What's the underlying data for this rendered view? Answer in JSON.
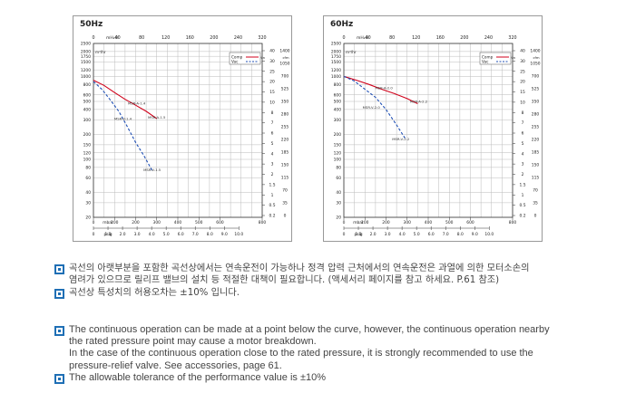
{
  "chart_data": [
    {
      "type": "line",
      "title": "50Hz",
      "top_axis_label": "mH₂O",
      "top_axis_ticks": [
        "0",
        "40",
        "80",
        "120",
        "160",
        "200",
        "240",
        "320"
      ],
      "bottom_axis1_label": "mbar",
      "bottom_axis1_ticks": [
        "0",
        "100",
        "200",
        "300",
        "400",
        "500",
        "600",
        "800"
      ],
      "bottom_axis2_label": "psig",
      "bottom_axis2_ticks": [
        "0",
        "1.0",
        "2.0",
        "3.0",
        "4.0",
        "5.0",
        "6.0",
        "7.0",
        "8.0",
        "9.0",
        "10.0"
      ],
      "left_axis_label": "m³/hr",
      "left_axis_ticks": [
        "2500",
        "2000",
        "1750",
        "1500",
        "1200",
        "1000",
        "800",
        "600",
        "500",
        "400",
        "300",
        "200",
        "150",
        "120",
        "100",
        "80",
        "60",
        "40",
        "30",
        "20"
      ],
      "right_axis1_label": "m³/min",
      "right_axis1_ticks": [
        "40",
        "30",
        "25",
        "20",
        "15",
        "10",
        "8",
        "7",
        "6",
        "5",
        "4",
        "3",
        "2",
        "1.5",
        "1",
        "0.5",
        "0.2"
      ],
      "right_axis2_label": "cfm",
      "right_axis2_ticks": [
        "1400",
        "1050",
        "700",
        "525",
        "350",
        "280",
        "255",
        "220",
        "185",
        "150",
        "115",
        "70",
        "35",
        "0"
      ],
      "legend": {
        "position": "top-right",
        "entries": [
          "Comp",
          "Vac"
        ]
      },
      "series": [
        {
          "name": "Comp",
          "style": "solid",
          "color": "#d0021b",
          "x": [
            0,
            50,
            100,
            150,
            200,
            250,
            300
          ],
          "y": [
            900,
            780,
            640,
            530,
            450,
            380,
            310
          ],
          "labels": [
            {
              "x": 205,
              "y": 460,
              "text": "MSR-A-1.4"
            },
            {
              "x": 300,
              "y": 310,
              "text": "MSR-A-1.5"
            }
          ]
        },
        {
          "name": "Vac",
          "style": "dashed",
          "color": "#1f4fb5",
          "x": [
            0,
            40,
            80,
            120,
            160,
            200,
            240,
            280
          ],
          "y": [
            870,
            700,
            520,
            380,
            250,
            160,
            110,
            72
          ],
          "labels": [
            {
              "x": 140,
              "y": 300,
              "text": "MSR-V-1.4"
            },
            {
              "x": 278,
              "y": 72,
              "text": "MSR-V-1.5"
            }
          ]
        }
      ],
      "grid": true
    },
    {
      "type": "line",
      "title": "60Hz",
      "top_axis_label": "mH₂O",
      "top_axis_ticks": [
        "0",
        "40",
        "80",
        "120",
        "160",
        "200",
        "240",
        "320"
      ],
      "bottom_axis1_label": "mbar",
      "bottom_axis1_ticks": [
        "0",
        "100",
        "200",
        "300",
        "400",
        "500",
        "600",
        "800"
      ],
      "bottom_axis2_label": "psig",
      "bottom_axis2_ticks": [
        "0",
        "1.0",
        "2.0",
        "3.0",
        "4.0",
        "5.0",
        "6.0",
        "7.0",
        "8.0",
        "9.0",
        "10.0"
      ],
      "left_axis_label": "m³/hr",
      "left_axis_ticks": [
        "2500",
        "2000",
        "1750",
        "1500",
        "1200",
        "1000",
        "800",
        "600",
        "500",
        "400",
        "300",
        "200",
        "150",
        "120",
        "100",
        "80",
        "60",
        "40",
        "30",
        "20"
      ],
      "right_axis1_label": "m³/min",
      "right_axis1_ticks": [
        "40",
        "30",
        "25",
        "20",
        "15",
        "10",
        "8",
        "7",
        "6",
        "5",
        "4",
        "3",
        "2",
        "1.5",
        "1",
        "0.5",
        "0.2"
      ],
      "right_axis2_label": "cfm",
      "right_axis2_ticks": [
        "1400",
        "1050",
        "700",
        "525",
        "350",
        "280",
        "255",
        "220",
        "185",
        "150",
        "115",
        "70",
        "35",
        "0"
      ],
      "legend": {
        "position": "top-right",
        "entries": [
          "Comp",
          "Vac"
        ]
      },
      "series": [
        {
          "name": "Comp",
          "style": "solid",
          "color": "#d0021b",
          "x": [
            0,
            60,
            120,
            180,
            240,
            300,
            350
          ],
          "y": [
            1000,
            900,
            800,
            700,
            620,
            540,
            470
          ],
          "labels": [
            {
              "x": 190,
              "y": 700,
              "text": "MSR-A-2.0"
            },
            {
              "x": 355,
              "y": 480,
              "text": "MSR-A-2.2"
            }
          ]
        },
        {
          "name": "Vac",
          "style": "dashed",
          "color": "#1f4fb5",
          "x": [
            0,
            50,
            100,
            150,
            200,
            250,
            290
          ],
          "y": [
            1000,
            880,
            700,
            560,
            400,
            260,
            180
          ],
          "labels": [
            {
              "x": 130,
              "y": 410,
              "text": "MSR-V-2.0"
            },
            {
              "x": 270,
              "y": 170,
              "text": "MSR-V-2.2"
            }
          ]
        }
      ],
      "grid": true
    }
  ],
  "notes_ko": [
    [
      "곡선의 아랫부분을 포함한 곡선상에서는 연속운전이 가능하나 정격 압력 근처에서의 연속운전은 과열에 의한 모터소손의",
      "염려가 있으므로 릴리프 밸브의 설치 등 적절한 대책이 필요합니다. (액세서리 페이지를 참고 하세요. P.61 참조)"
    ],
    [
      "곡선상 특성치의 허용오차는 ±10% 입니다."
    ]
  ],
  "notes_en": [
    [
      "The continuous operation can be made at a point below the curve, however, the continuous operation nearby",
      "the rated pressure point may cause a motor breakdown.",
      "In the case of the continuous operation close to the rated pressure, it is strongly recommended to use the",
      "pressure-relief valve. See accessories, page 61."
    ],
    [
      "The allowable tolerance of the performance value is ±10%"
    ]
  ]
}
